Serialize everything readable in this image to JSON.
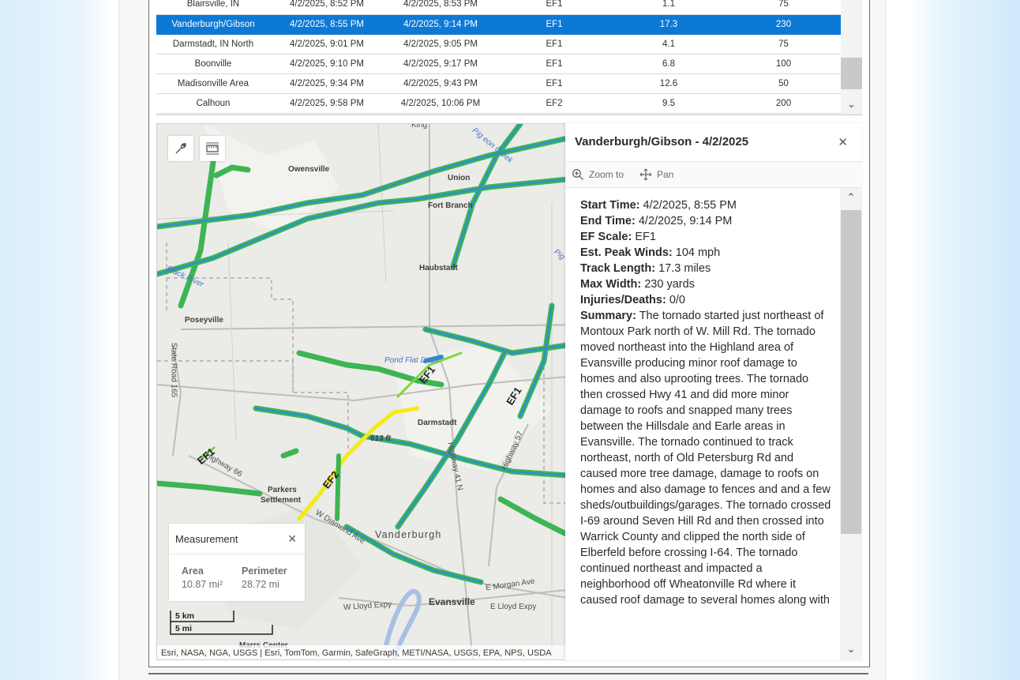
{
  "table": {
    "rows": [
      [
        "Blairsville, IN",
        "4/2/2025, 8:52 PM",
        "4/2/2025, 8:53 PM",
        "EF1",
        "1.1",
        "75"
      ],
      [
        "Vanderburgh/Gibson",
        "4/2/2025, 8:55 PM",
        "4/2/2025, 9:14 PM",
        "EF1",
        "17.3",
        "230"
      ],
      [
        "Darmstadt, IN North",
        "4/2/2025, 9:01 PM",
        "4/2/2025, 9:05 PM",
        "EF1",
        "4.1",
        "75"
      ],
      [
        "Boonville",
        "4/2/2025, 9:10 PM",
        "4/2/2025, 9:17 PM",
        "EF1",
        "6.8",
        "100"
      ],
      [
        "Madisonville Area",
        "4/2/2025, 9:34 PM",
        "4/2/2025, 9:43 PM",
        "EF1",
        "12.6",
        "50"
      ],
      [
        "Calhoun",
        "4/2/2025, 9:58 PM",
        "4/2/2025, 10:06 PM",
        "EF2",
        "9.5",
        "200"
      ]
    ],
    "selected_row": "Vanderburgh/Gibson",
    "selected_color": "#0c79d6"
  },
  "map": {
    "labels": {
      "owensville": "Owensville",
      "union": "Union",
      "fort_branch": "Fort Branch",
      "haubstadt": "Haubstadt",
      "poseyville": "Poseyville",
      "darmstadt": "Darmstadt",
      "parkers": "Parkers",
      "settlement": "Settlement",
      "vanderburgh": "Vanderburgh",
      "evansville": "Evansville",
      "marrs_center": "Marrs Center",
      "king": "King",
      "black_river": "Black River",
      "pigeon_creek": "Pig eon Creek",
      "pig": "Pig",
      "pond_flat": "Pond Flat Ditch",
      "state_road": "State Road 165",
      "highway_66": "Highway 66",
      "highway_41": "Highway 41 N",
      "highway_57": "Highway 57",
      "diamond_ave": "W Diamond Ave",
      "morgan_ave": "E Morgan Ave",
      "lloyd_w": "W Lloyd Expy",
      "lloyd_e": "E Lloyd Expy",
      "elevation": "613 ft",
      "ef1_a": "EF1",
      "ef1_b": "EF1",
      "ef1_c": "EF1",
      "ef2": "EF2"
    },
    "tools": [
      "wrench-icon",
      "measure-area-icon"
    ],
    "measurement": {
      "title": "Measurement",
      "area_label": "Area",
      "area_value": "10.87 mi²",
      "perimeter_label": "Perimeter",
      "perimeter_value": "28.72 mi"
    },
    "scale": {
      "km": "5 km",
      "mi": "5 mi"
    },
    "attribution": "Esri, NASA, NGA, USGS | Esri, TomTom, Garmin, SafeGraph, METI/NASA, USGS, EPA, NPS, USDA",
    "colors": {
      "ef1_track": "#3db553",
      "ef1_core": "#2f8fd0",
      "ef2_track": "#f5ea14"
    }
  },
  "popup": {
    "title": "Vanderburgh/Gibson - 4/2/2025",
    "zoom_label": "Zoom to",
    "pan_label": "Pan",
    "fields": [
      {
        "label": "Start Time:",
        "value": "4/2/2025, 8:55 PM"
      },
      {
        "label": "End Time:",
        "value": "4/2/2025, 9:14 PM"
      },
      {
        "label": "EF Scale:",
        "value": "EF1"
      },
      {
        "label": "Est. Peak Winds:",
        "value": "104 mph"
      },
      {
        "label": "Track Length:",
        "value": "17.3 miles"
      },
      {
        "label": "Max Width:",
        "value": "230 yards"
      },
      {
        "label": "Injuries/Deaths:",
        "value": "0/0"
      }
    ],
    "summary_label": "Summary:",
    "summary": "The tornado started just northeast of Montoux Park north of W. Mill Rd. The tornado moved northeast into the Highland area of Evansville producing minor roof damage to homes and also uprooting trees. The tornado then crossed Hwy 41 and did more minor damage to roofs and snapped many trees between the Hillsdale and Earle areas in Evansville. The tornado continued to track northeast, north of Old Petersburg Rd and caused more tree damage, damage to roofs on homes and also damage to fences and and a few sheds/outbuildings/garages. The tornado crossed I-69 around Seven Hill Rd and then crossed into Warrick County and clipped the north side of Elberfeld before crossing I-64. The tornado continued northeast and impacted a neighborhood off Wheatonville Rd where it caused roof damage to several homes along with"
  }
}
